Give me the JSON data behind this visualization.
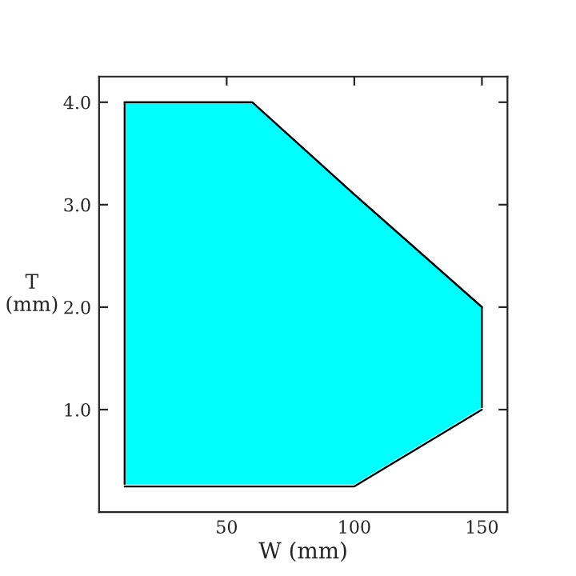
{
  "chart_data": {
    "type": "area",
    "xlabel": "W (mm)",
    "ylabel": "T\n(mm)",
    "xlim": [
      0,
      160
    ],
    "ylim": [
      0,
      4.25
    ],
    "xticks": [
      50,
      100,
      150
    ],
    "yticks": [
      {
        "value": 1.0,
        "label": "1.0"
      },
      {
        "value": 2.0,
        "label": "2.0"
      },
      {
        "value": 3.0,
        "label": "3.0"
      },
      {
        "value": 4.0,
        "label": "4.0"
      }
    ],
    "grid": false,
    "legend": false,
    "series": [
      {
        "color": "#00ffff",
        "x": [
          10,
          60,
          100,
          150
        ],
        "values": [
          4.0,
          4.0,
          3.1,
          2.0
        ]
      },
      {
        "color": "#ffffff",
        "x": [
          10,
          60,
          100,
          150
        ],
        "values": [
          0.25,
          0.25,
          0.25,
          1.0
        ]
      }
    ]
  }
}
